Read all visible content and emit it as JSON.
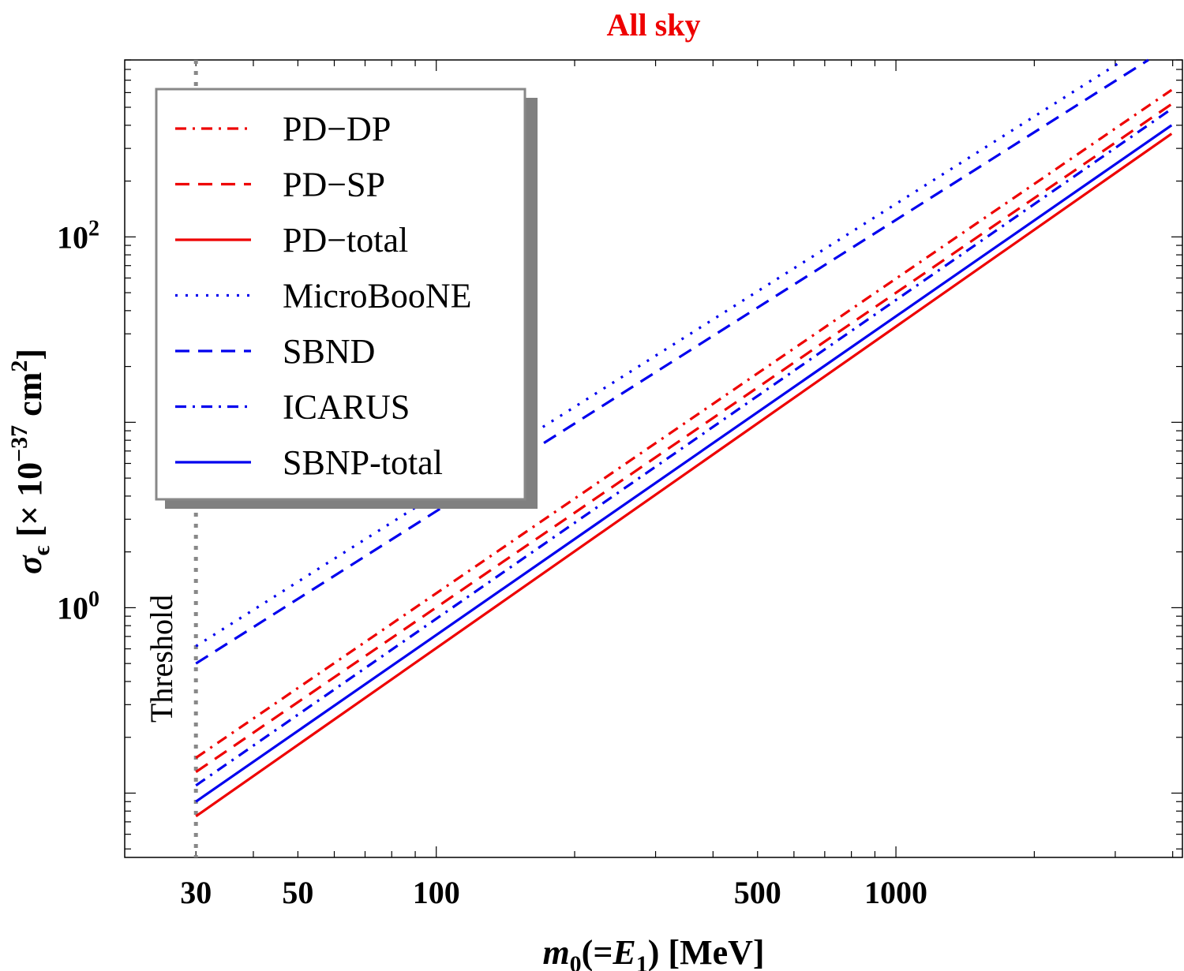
{
  "chart_data": {
    "type": "line",
    "title": "All sky",
    "title_color": "#ee0000",
    "xlabel_parts": [
      {
        "t": "m",
        "style": "italic"
      },
      {
        "t": "0",
        "style": "sub"
      },
      {
        "t": "(=",
        "style": "normal"
      },
      {
        "t": "E",
        "style": "italic"
      },
      {
        "t": "1",
        "style": "sub"
      },
      {
        "t": ") [MeV]",
        "style": "normal"
      }
    ],
    "ylabel_parts": [
      {
        "t": "σ",
        "style": "italic"
      },
      {
        "t": "ϵ",
        "style": "sub"
      },
      {
        "t": " [× 10",
        "style": "normal"
      },
      {
        "t": "−37",
        "style": "sup"
      },
      {
        "t": " cm",
        "style": "normal"
      },
      {
        "t": "2",
        "style": "sup"
      },
      {
        "t": "]",
        "style": "normal"
      }
    ],
    "x_scale": "log",
    "y_scale": "log",
    "xlim": [
      21,
      4200
    ],
    "ylim": [
      0.045,
      900
    ],
    "x_ticks": [
      30,
      50,
      100,
      500,
      1000
    ],
    "y_ticks": [
      {
        "value": 1,
        "base": "10",
        "exp": "0"
      },
      {
        "value": 100,
        "base": "10",
        "exp": "2"
      }
    ],
    "legend_position": "top-left",
    "threshold": {
      "x": 30,
      "label": "Threshold",
      "color": "#888888"
    },
    "series": [
      {
        "name": "PD−DP",
        "color": "#ee0000",
        "dash": "dashdot",
        "points": [
          [
            30,
            0.155
          ],
          [
            3978,
            620
          ]
        ]
      },
      {
        "name": "PD−SP",
        "color": "#ee0000",
        "dash": "dashed",
        "points": [
          [
            30,
            0.13
          ],
          [
            3978,
            520
          ]
        ]
      },
      {
        "name": "PD−total",
        "color": "#ee0000",
        "dash": "solid",
        "points": [
          [
            30,
            0.075
          ],
          [
            3978,
            360
          ]
        ]
      },
      {
        "name": "MicroBooNE",
        "color": "#0000ee",
        "dash": "dotted",
        "points": [
          [
            30,
            0.62
          ],
          [
            3130,
            900
          ]
        ]
      },
      {
        "name": "SBND",
        "color": "#0000ee",
        "dash": "dashed",
        "points": [
          [
            30,
            0.5
          ],
          [
            3542,
            900
          ]
        ]
      },
      {
        "name": "ICARUS",
        "color": "#0000ee",
        "dash": "dashdot",
        "points": [
          [
            30,
            0.11
          ],
          [
            3978,
            490
          ]
        ]
      },
      {
        "name": "SBNP-total",
        "color": "#0000ee",
        "dash": "solid",
        "points": [
          [
            30,
            0.09
          ],
          [
            3978,
            400
          ]
        ]
      }
    ]
  }
}
